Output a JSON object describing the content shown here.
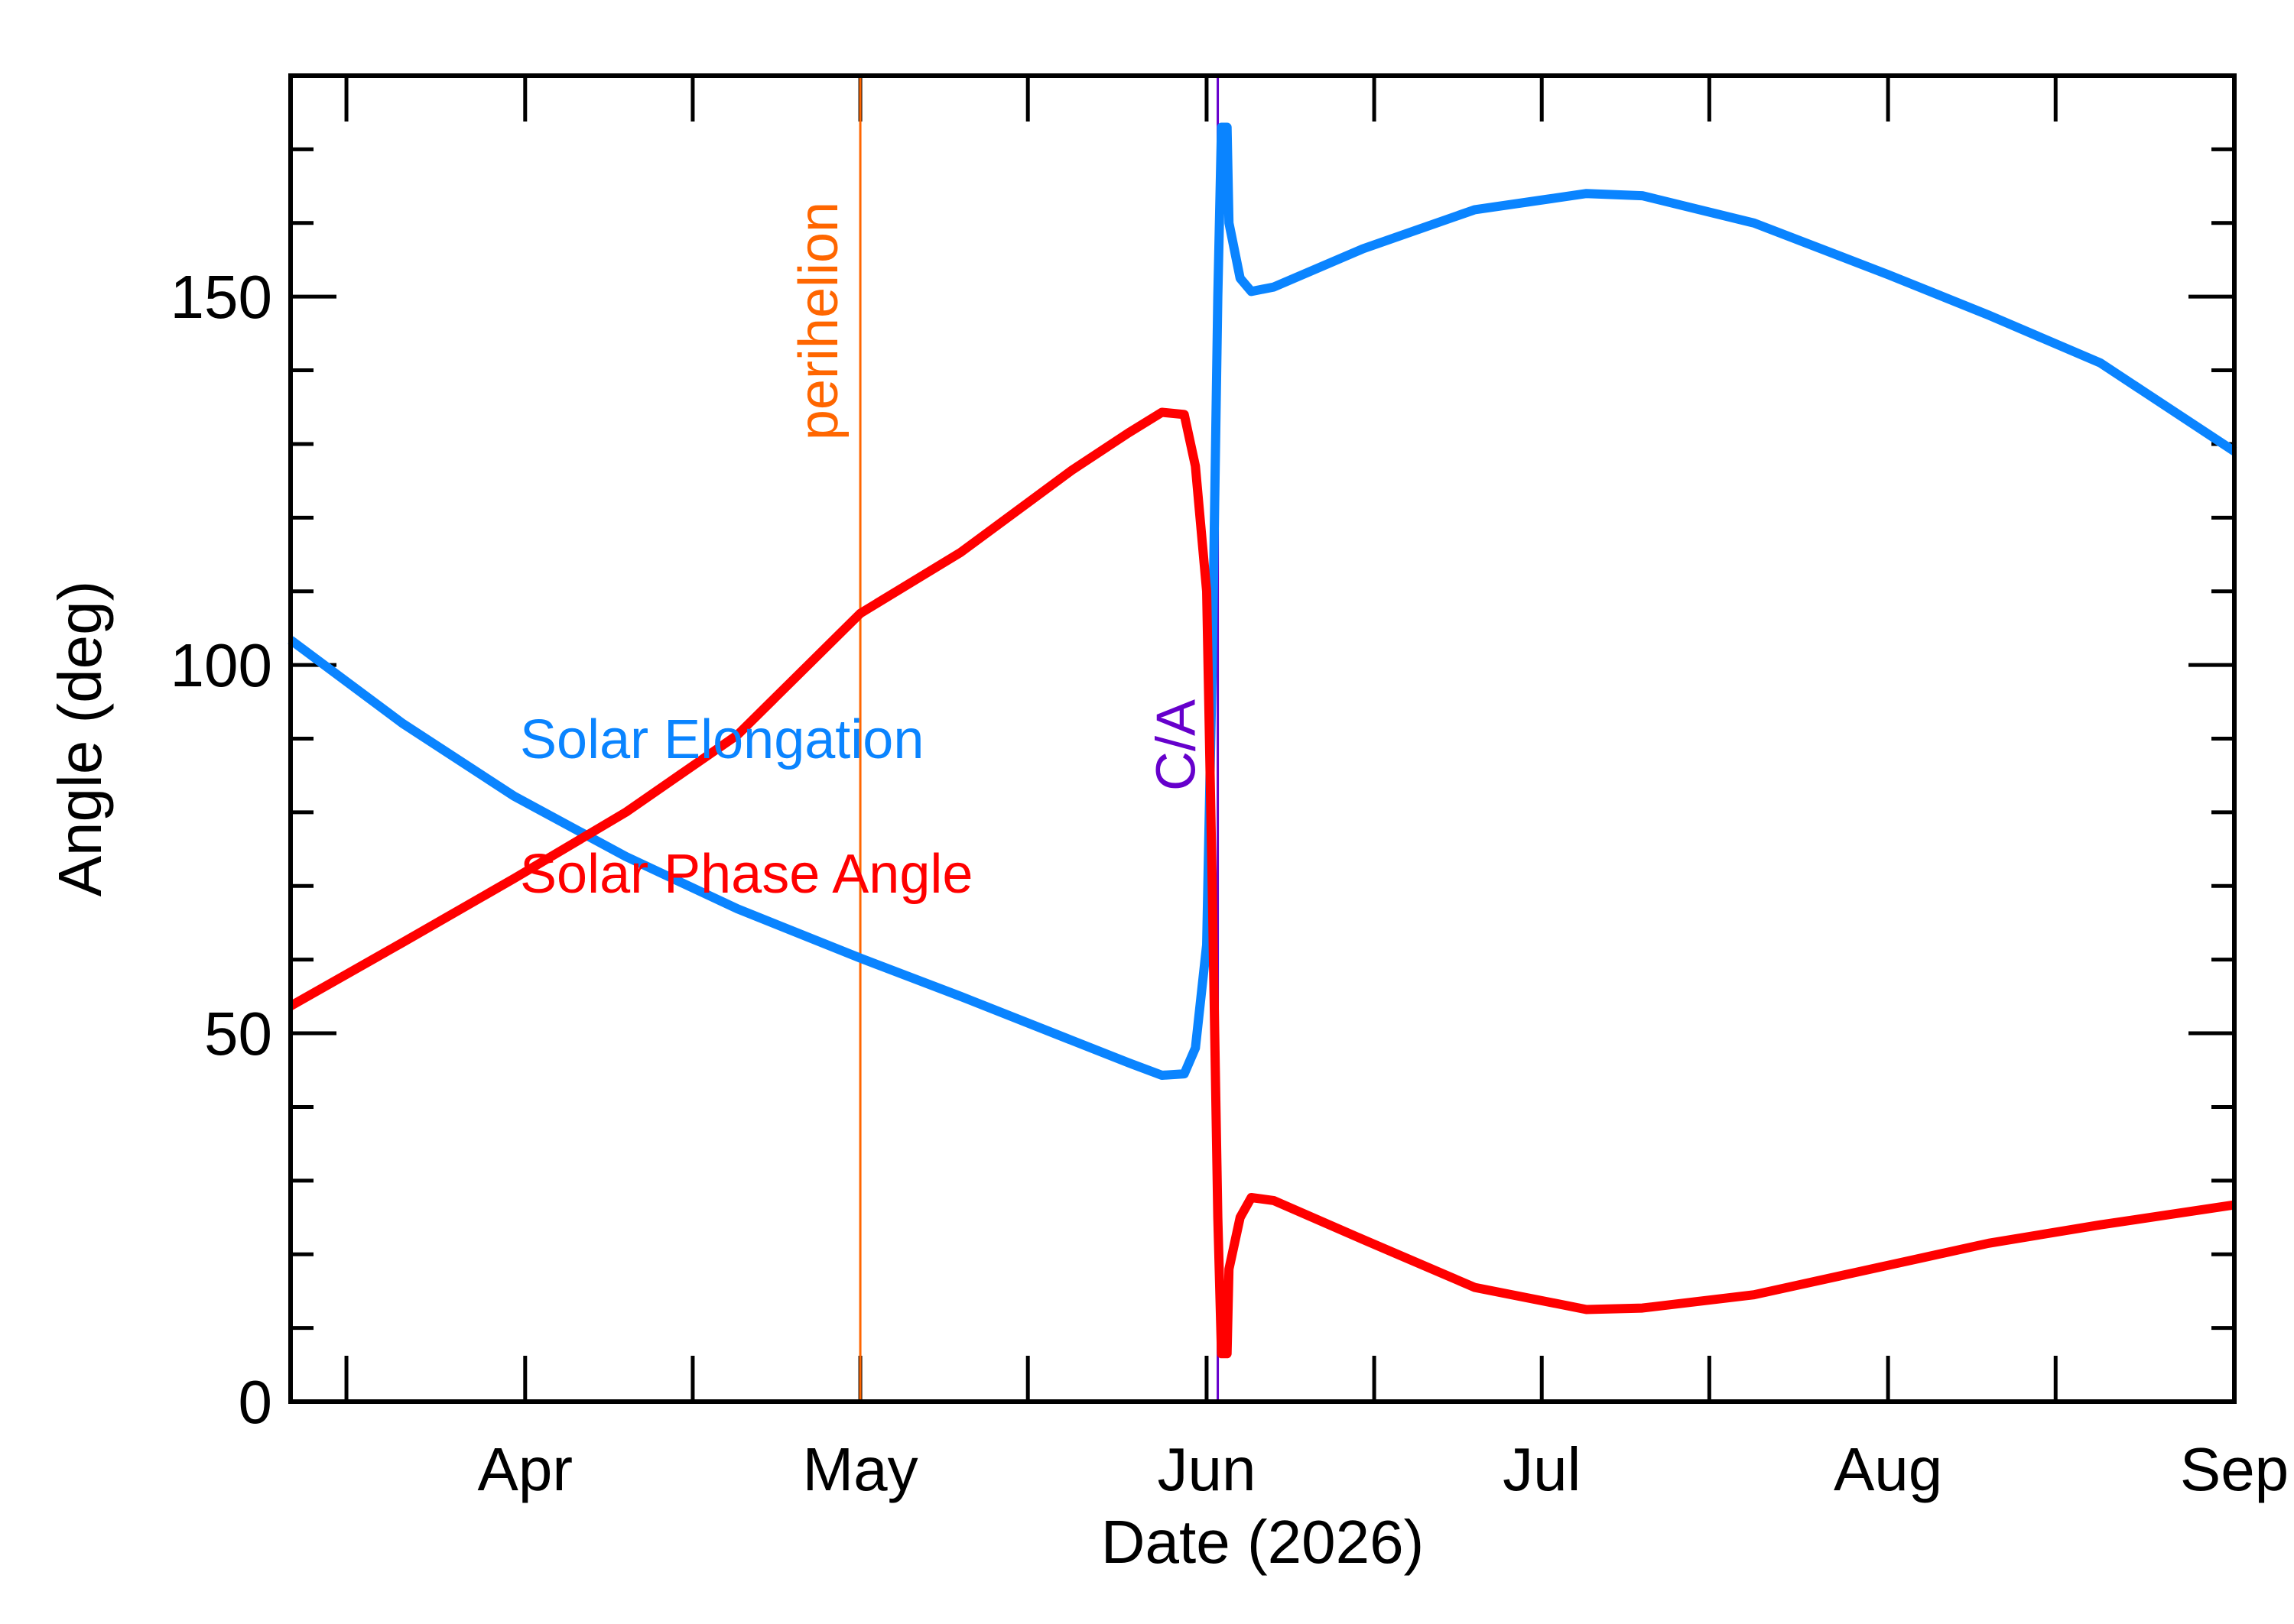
{
  "chart_data": {
    "type": "line",
    "xlabel": "Date (2026)",
    "ylabel": "Angle (deg)",
    "x_start": "2026-03-11",
    "x_end": "2026-09-01",
    "ylim": [
      0,
      180
    ],
    "x_tick_labels": [
      {
        "date": "2026-04-01",
        "label": "Apr"
      },
      {
        "date": "2026-05-01",
        "label": "May"
      },
      {
        "date": "2026-06-01",
        "label": "Jun"
      },
      {
        "date": "2026-07-01",
        "label": "Jul"
      },
      {
        "date": "2026-08-01",
        "label": "Aug"
      },
      {
        "date": "2026-09-01",
        "label": "Sep"
      }
    ],
    "y_major_ticks": [
      0,
      50,
      100,
      150
    ],
    "y_minor_step": 10,
    "series": [
      {
        "name": "Solar Elongation",
        "color": "#0a84ff",
        "points": [
          [
            "2026-03-11",
            103.4
          ],
          [
            "2026-03-21",
            92.1
          ],
          [
            "2026-03-31",
            82.2
          ],
          [
            "2026-04-10",
            74.0
          ],
          [
            "2026-04-20",
            66.9
          ],
          [
            "2026-05-01",
            60.2
          ],
          [
            "2026-05-10",
            55.0
          ],
          [
            "2026-05-20",
            49.0
          ],
          [
            "2026-05-25",
            46.0
          ],
          [
            "2026-05-28",
            44.3
          ],
          [
            "2026-05-30",
            44.5
          ],
          [
            "2026-05-31",
            48.0
          ],
          [
            "2026-06-01",
            62.0
          ],
          [
            "2026-06-01T12:00",
            100.0
          ],
          [
            "2026-06-02",
            150.0
          ],
          [
            "2026-06-02T08:00",
            173.0
          ],
          [
            "2026-06-02T20:00",
            173.0
          ],
          [
            "2026-06-03",
            160.0
          ],
          [
            "2026-06-04",
            152.5
          ],
          [
            "2026-06-05",
            150.7
          ],
          [
            "2026-06-07",
            151.3
          ],
          [
            "2026-06-15",
            156.5
          ],
          [
            "2026-06-25",
            161.8
          ],
          [
            "2026-07-05",
            164.0
          ],
          [
            "2026-07-10",
            163.7
          ],
          [
            "2026-07-20",
            160.0
          ],
          [
            "2026-08-01",
            153.0
          ],
          [
            "2026-08-10",
            147.5
          ],
          [
            "2026-08-20",
            141.0
          ],
          [
            "2026-09-01",
            129.0
          ]
        ]
      },
      {
        "name": "Solar Phase Angle",
        "color": "#ff0000",
        "points": [
          [
            "2026-03-11",
            53.7
          ],
          [
            "2026-03-21",
            62.3
          ],
          [
            "2026-03-31",
            71.0
          ],
          [
            "2026-04-10",
            80.0
          ],
          [
            "2026-04-20",
            90.5
          ],
          [
            "2026-05-01",
            107.0
          ],
          [
            "2026-05-10",
            115.3
          ],
          [
            "2026-05-20",
            126.5
          ],
          [
            "2026-05-25",
            131.5
          ],
          [
            "2026-05-28",
            134.3
          ],
          [
            "2026-05-30",
            134.0
          ],
          [
            "2026-05-31",
            127.0
          ],
          [
            "2026-06-01",
            110.0
          ],
          [
            "2026-06-01T12:00",
            70.0
          ],
          [
            "2026-06-02",
            25.0
          ],
          [
            "2026-06-02T08:00",
            6.5
          ],
          [
            "2026-06-02T20:00",
            6.5
          ],
          [
            "2026-06-03",
            18.0
          ],
          [
            "2026-06-04",
            25.0
          ],
          [
            "2026-06-05",
            27.7
          ],
          [
            "2026-06-07",
            27.3
          ],
          [
            "2026-06-15",
            22.0
          ],
          [
            "2026-06-25",
            15.5
          ],
          [
            "2026-07-05",
            12.5
          ],
          [
            "2026-07-10",
            12.7
          ],
          [
            "2026-07-20",
            14.5
          ],
          [
            "2026-08-01",
            18.5
          ],
          [
            "2026-08-10",
            21.5
          ],
          [
            "2026-08-20",
            24.0
          ],
          [
            "2026-09-01",
            26.7
          ]
        ]
      }
    ],
    "vertical_markers": [
      {
        "label": "perihelion",
        "date": "2026-05-01",
        "color": "#ff6600"
      },
      {
        "label": "C/A",
        "date": "2026-06-02",
        "color": "#6600cc"
      }
    ]
  }
}
